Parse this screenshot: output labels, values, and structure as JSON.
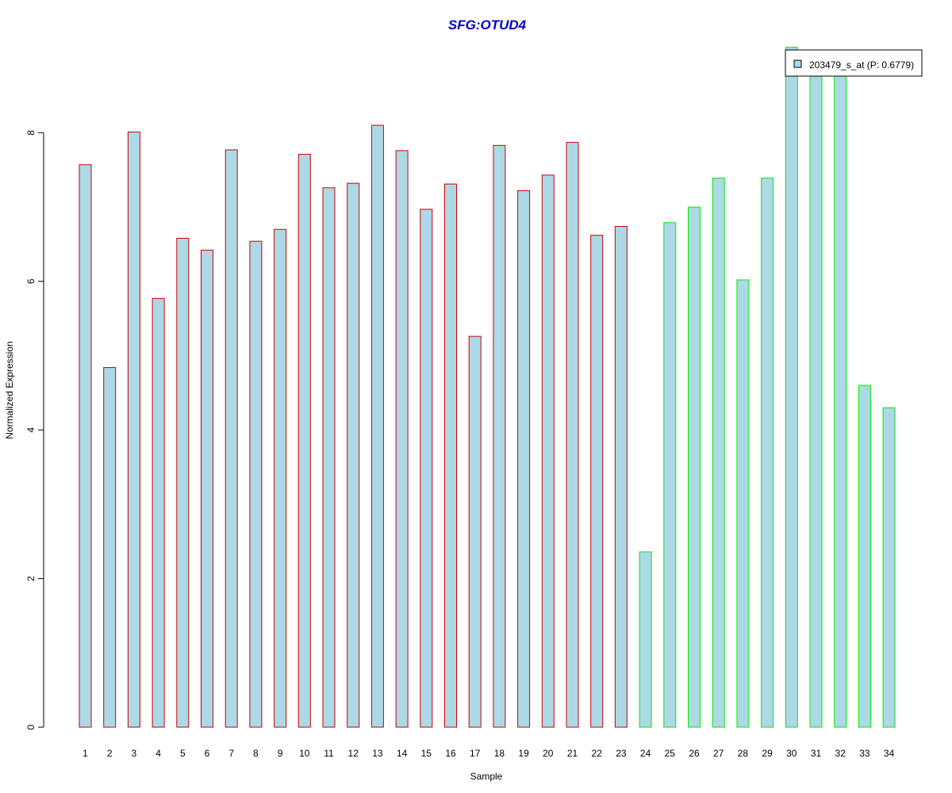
{
  "chart_data": {
    "type": "bar",
    "title": "SFG:OTUD4",
    "xlabel": "Sample",
    "ylabel": "Normalized Expression",
    "ylim": [
      0,
      9.2
    ],
    "yticks": [
      0,
      2,
      4,
      6,
      8
    ],
    "grid": false,
    "legend_placement": "top-right",
    "categories": [
      "1",
      "2",
      "3",
      "4",
      "5",
      "6",
      "7",
      "8",
      "9",
      "10",
      "11",
      "12",
      "13",
      "14",
      "15",
      "16",
      "17",
      "18",
      "19",
      "20",
      "21",
      "22",
      "23",
      "24",
      "25",
      "26",
      "27",
      "28",
      "29",
      "30",
      "31",
      "32",
      "33",
      "34"
    ],
    "values": [
      7.57,
      4.84,
      8.01,
      5.77,
      6.58,
      6.42,
      7.77,
      6.54,
      6.7,
      7.71,
      7.26,
      7.32,
      8.1,
      7.76,
      6.97,
      7.31,
      5.26,
      7.83,
      7.22,
      7.43,
      7.87,
      6.62,
      6.74,
      2.36,
      6.79,
      7.0,
      7.39,
      6.02,
      7.39,
      9.15,
      8.84,
      8.84,
      4.6,
      4.3
    ],
    "group_border_colors": [
      "#cc0000",
      "#cc0000",
      "#cc0000",
      "#cc0000",
      "#cc0000",
      "#cc0000",
      "#cc0000",
      "#cc0000",
      "#cc0000",
      "#cc0000",
      "#cc0000",
      "#cc0000",
      "#cc0000",
      "#cc0000",
      "#cc0000",
      "#cc0000",
      "#cc0000",
      "#cc0000",
      "#cc0000",
      "#cc0000",
      "#cc0000",
      "#cc0000",
      "#cc0000",
      "#00ee00",
      "#00ee00",
      "#00ee00",
      "#00ee00",
      "#00ee00",
      "#00ee00",
      "#00ee00",
      "#00ee00",
      "#00ee00",
      "#00ee00",
      "#00ee00"
    ],
    "fill_color": "#add8e6",
    "series": [
      {
        "name": "203479_s_at (P: 0.6779)"
      }
    ]
  }
}
